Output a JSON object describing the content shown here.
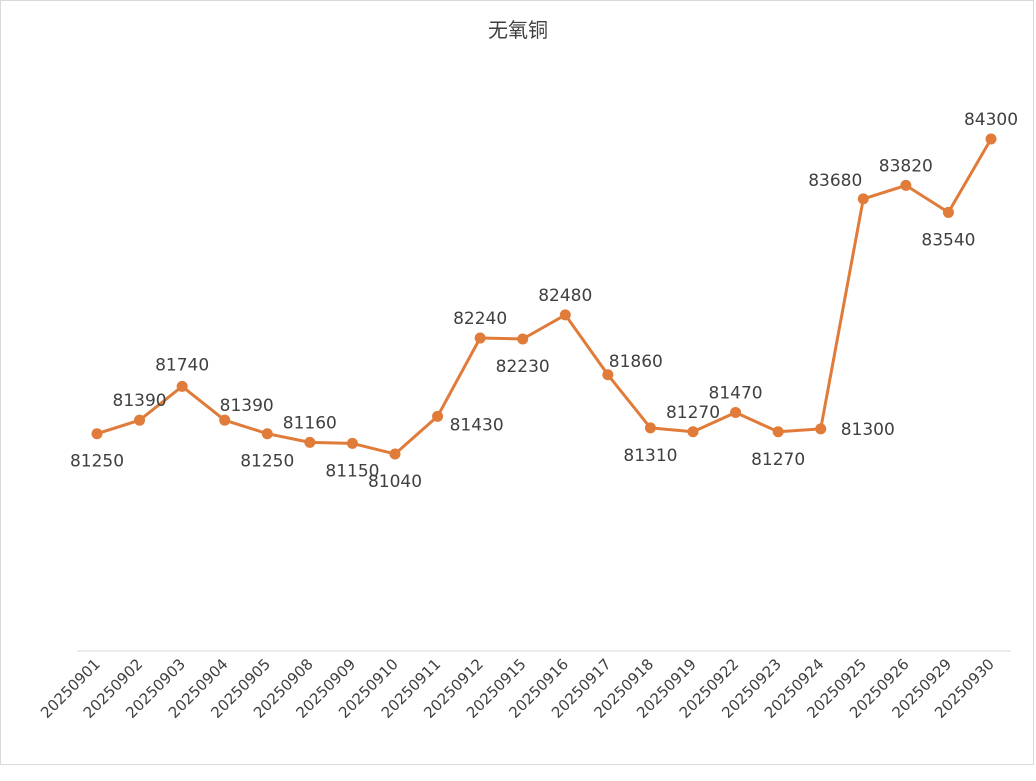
{
  "chart_data": {
    "type": "line",
    "title": "无氧铜",
    "xlabel": "",
    "ylabel": "",
    "categories": [
      "20250901",
      "20250902",
      "20250903",
      "20250904",
      "20250905",
      "20250908",
      "20250909",
      "20250910",
      "20250911",
      "20250912",
      "20250915",
      "20250916",
      "20250917",
      "20250918",
      "20250919",
      "20250922",
      "20250923",
      "20250924",
      "20250925",
      "20250926",
      "20250929",
      "20250930"
    ],
    "series": [
      {
        "values": [
          81250,
          81390,
          81740,
          81390,
          81250,
          81160,
          81150,
          81040,
          81430,
          82240,
          82230,
          82480,
          81860,
          81310,
          81270,
          81470,
          81270,
          81300,
          83680,
          83820,
          83540,
          84300
        ]
      }
    ],
    "ylim": [
      79000,
      84800
    ],
    "grid": false,
    "legend": "none",
    "colors": {
      "line": "#E07B39",
      "drop": "#9DC3E6",
      "axis": "#D9D9D9",
      "text": "#404040"
    }
  }
}
